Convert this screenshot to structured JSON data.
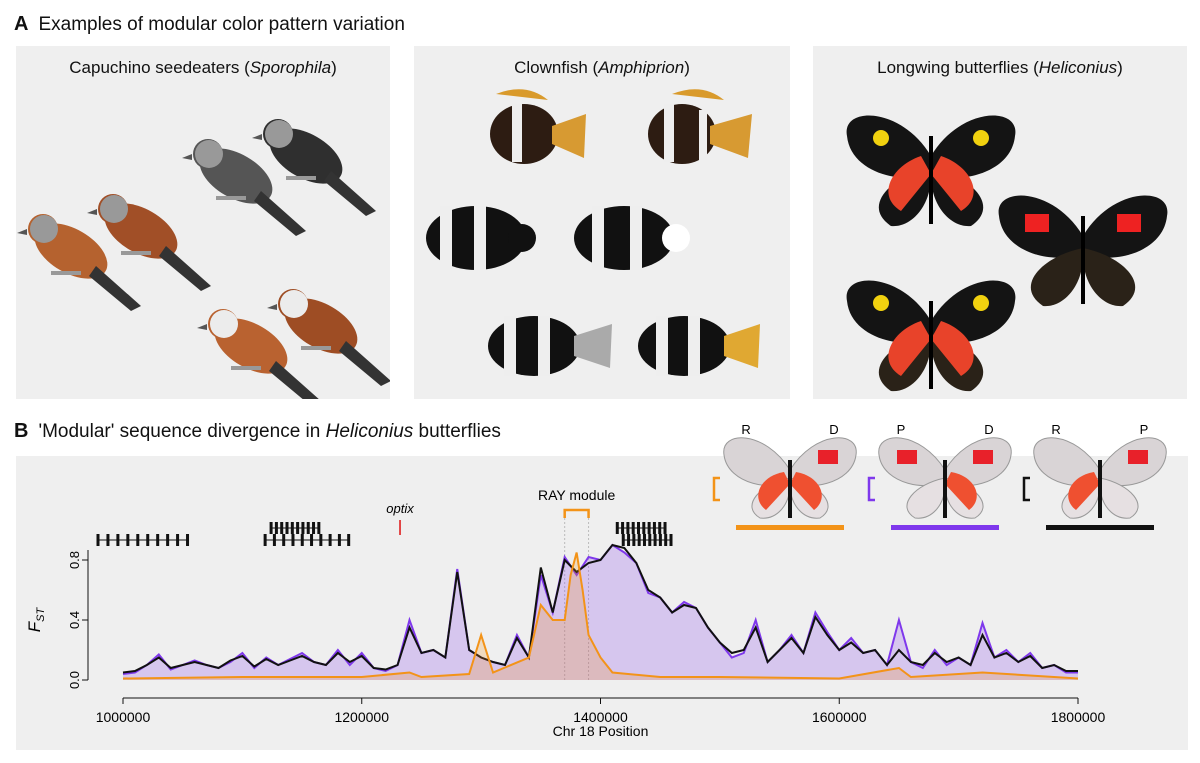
{
  "panelA": {
    "letter": "A",
    "title": "Examples of modular color pattern variation",
    "boxes": [
      {
        "title": "Capuchino seedeaters (",
        "italic": "Sporophila",
        "close": ")"
      },
      {
        "title": "Clownfish (",
        "italic": "Amphiprion",
        "close": ")"
      },
      {
        "title": "Longwing butterflies (",
        "italic": "Heliconius",
        "close": ")"
      }
    ]
  },
  "panelB": {
    "letter": "B",
    "title_pre": "'Modular' sequence divergence in ",
    "title_italic": "Heliconius",
    "title_post": " butterflies",
    "gene_label": "optix",
    "module_label": "RAY module",
    "insets": [
      {
        "left": "R",
        "right": "D",
        "bar_color": "#f39318"
      },
      {
        "left": "P",
        "right": "D",
        "bar_color": "#7f38ec"
      },
      {
        "left": "R",
        "right": "P",
        "bar_color": "#111111"
      }
    ]
  },
  "chart_data": {
    "type": "line",
    "xlabel": "Chr 18 Position",
    "ylabel": "FST",
    "xlim": [
      1000000,
      1800000
    ],
    "ylim": [
      0,
      1
    ],
    "xticks": [
      1000000,
      1200000,
      1400000,
      1600000,
      1800000
    ],
    "xtick_labels": [
      "1000000",
      "1200000",
      "1400000",
      "1600000",
      "1800000"
    ],
    "yticks": [
      0.0,
      0.4,
      0.8
    ],
    "ytick_labels": [
      "0.0",
      "0.4",
      "0.8"
    ],
    "series": [
      {
        "color": "#7f38ec",
        "fill": true,
        "points": [
          [
            1000000,
            0.04
          ],
          [
            1010000,
            0.05
          ],
          [
            1020000,
            0.1
          ],
          [
            1030000,
            0.17
          ],
          [
            1040000,
            0.07
          ],
          [
            1050000,
            0.1
          ],
          [
            1060000,
            0.13
          ],
          [
            1070000,
            0.1
          ],
          [
            1080000,
            0.08
          ],
          [
            1090000,
            0.12
          ],
          [
            1100000,
            0.18
          ],
          [
            1110000,
            0.08
          ],
          [
            1120000,
            0.15
          ],
          [
            1130000,
            0.1
          ],
          [
            1140000,
            0.14
          ],
          [
            1150000,
            0.18
          ],
          [
            1160000,
            0.12
          ],
          [
            1170000,
            0.1
          ],
          [
            1180000,
            0.2
          ],
          [
            1190000,
            0.1
          ],
          [
            1200000,
            0.18
          ],
          [
            1210000,
            0.08
          ],
          [
            1220000,
            0.06
          ],
          [
            1230000,
            0.1
          ],
          [
            1240000,
            0.4
          ],
          [
            1250000,
            0.18
          ],
          [
            1260000,
            0.2
          ],
          [
            1270000,
            0.15
          ],
          [
            1280000,
            0.74
          ],
          [
            1290000,
            0.2
          ],
          [
            1300000,
            0.15
          ],
          [
            1310000,
            0.12
          ],
          [
            1320000,
            0.1
          ],
          [
            1330000,
            0.3
          ],
          [
            1340000,
            0.15
          ],
          [
            1350000,
            0.7
          ],
          [
            1360000,
            0.45
          ],
          [
            1370000,
            0.82
          ],
          [
            1380000,
            0.7
          ],
          [
            1390000,
            0.82
          ],
          [
            1400000,
            0.8
          ],
          [
            1410000,
            0.9
          ],
          [
            1420000,
            0.85
          ],
          [
            1430000,
            0.78
          ],
          [
            1440000,
            0.58
          ],
          [
            1450000,
            0.55
          ],
          [
            1460000,
            0.45
          ],
          [
            1470000,
            0.52
          ],
          [
            1480000,
            0.48
          ],
          [
            1490000,
            0.35
          ],
          [
            1500000,
            0.25
          ],
          [
            1510000,
            0.15
          ],
          [
            1520000,
            0.18
          ],
          [
            1530000,
            0.4
          ],
          [
            1540000,
            0.12
          ],
          [
            1550000,
            0.2
          ],
          [
            1560000,
            0.3
          ],
          [
            1570000,
            0.18
          ],
          [
            1580000,
            0.45
          ],
          [
            1590000,
            0.32
          ],
          [
            1600000,
            0.2
          ],
          [
            1610000,
            0.28
          ],
          [
            1620000,
            0.18
          ],
          [
            1630000,
            0.2
          ],
          [
            1640000,
            0.1
          ],
          [
            1650000,
            0.4
          ],
          [
            1660000,
            0.12
          ],
          [
            1670000,
            0.08
          ],
          [
            1680000,
            0.2
          ],
          [
            1690000,
            0.1
          ],
          [
            1700000,
            0.15
          ],
          [
            1710000,
            0.1
          ],
          [
            1720000,
            0.38
          ],
          [
            1730000,
            0.15
          ],
          [
            1740000,
            0.2
          ],
          [
            1750000,
            0.12
          ],
          [
            1760000,
            0.18
          ],
          [
            1770000,
            0.08
          ],
          [
            1780000,
            0.1
          ],
          [
            1790000,
            0.05
          ],
          [
            1800000,
            0.05
          ]
        ]
      },
      {
        "color": "#111111",
        "fill": false,
        "points": [
          [
            1000000,
            0.05
          ],
          [
            1010000,
            0.06
          ],
          [
            1020000,
            0.1
          ],
          [
            1030000,
            0.15
          ],
          [
            1040000,
            0.08
          ],
          [
            1050000,
            0.1
          ],
          [
            1060000,
            0.12
          ],
          [
            1070000,
            0.1
          ],
          [
            1080000,
            0.08
          ],
          [
            1090000,
            0.13
          ],
          [
            1100000,
            0.16
          ],
          [
            1110000,
            0.09
          ],
          [
            1120000,
            0.14
          ],
          [
            1130000,
            0.1
          ],
          [
            1140000,
            0.13
          ],
          [
            1150000,
            0.16
          ],
          [
            1160000,
            0.12
          ],
          [
            1170000,
            0.1
          ],
          [
            1180000,
            0.18
          ],
          [
            1190000,
            0.12
          ],
          [
            1200000,
            0.16
          ],
          [
            1210000,
            0.08
          ],
          [
            1220000,
            0.07
          ],
          [
            1230000,
            0.1
          ],
          [
            1240000,
            0.35
          ],
          [
            1250000,
            0.18
          ],
          [
            1260000,
            0.2
          ],
          [
            1270000,
            0.15
          ],
          [
            1280000,
            0.72
          ],
          [
            1290000,
            0.2
          ],
          [
            1300000,
            0.15
          ],
          [
            1310000,
            0.12
          ],
          [
            1320000,
            0.1
          ],
          [
            1330000,
            0.28
          ],
          [
            1340000,
            0.15
          ],
          [
            1350000,
            0.75
          ],
          [
            1360000,
            0.45
          ],
          [
            1370000,
            0.8
          ],
          [
            1380000,
            0.72
          ],
          [
            1390000,
            0.78
          ],
          [
            1400000,
            0.8
          ],
          [
            1410000,
            0.9
          ],
          [
            1420000,
            0.88
          ],
          [
            1430000,
            0.78
          ],
          [
            1440000,
            0.6
          ],
          [
            1450000,
            0.55
          ],
          [
            1460000,
            0.45
          ],
          [
            1470000,
            0.5
          ],
          [
            1480000,
            0.48
          ],
          [
            1490000,
            0.35
          ],
          [
            1500000,
            0.25
          ],
          [
            1510000,
            0.18
          ],
          [
            1520000,
            0.2
          ],
          [
            1530000,
            0.35
          ],
          [
            1540000,
            0.12
          ],
          [
            1550000,
            0.2
          ],
          [
            1560000,
            0.28
          ],
          [
            1570000,
            0.18
          ],
          [
            1580000,
            0.42
          ],
          [
            1590000,
            0.3
          ],
          [
            1600000,
            0.2
          ],
          [
            1610000,
            0.25
          ],
          [
            1620000,
            0.18
          ],
          [
            1630000,
            0.2
          ],
          [
            1640000,
            0.1
          ],
          [
            1650000,
            0.2
          ],
          [
            1660000,
            0.12
          ],
          [
            1670000,
            0.1
          ],
          [
            1680000,
            0.18
          ],
          [
            1690000,
            0.12
          ],
          [
            1700000,
            0.15
          ],
          [
            1710000,
            0.1
          ],
          [
            1720000,
            0.3
          ],
          [
            1730000,
            0.15
          ],
          [
            1740000,
            0.18
          ],
          [
            1750000,
            0.12
          ],
          [
            1760000,
            0.16
          ],
          [
            1770000,
            0.08
          ],
          [
            1780000,
            0.1
          ],
          [
            1790000,
            0.06
          ],
          [
            1800000,
            0.06
          ]
        ]
      },
      {
        "color": "#f39318",
        "fill": true,
        "points": [
          [
            1000000,
            0.01
          ],
          [
            1100000,
            0.02
          ],
          [
            1200000,
            0.02
          ],
          [
            1240000,
            0.05
          ],
          [
            1250000,
            0.02
          ],
          [
            1290000,
            0.04
          ],
          [
            1300000,
            0.3
          ],
          [
            1310000,
            0.05
          ],
          [
            1340000,
            0.15
          ],
          [
            1350000,
            0.5
          ],
          [
            1360000,
            0.4
          ],
          [
            1370000,
            0.4
          ],
          [
            1375000,
            0.7
          ],
          [
            1380000,
            0.85
          ],
          [
            1385000,
            0.6
          ],
          [
            1390000,
            0.3
          ],
          [
            1400000,
            0.15
          ],
          [
            1410000,
            0.05
          ],
          [
            1450000,
            0.02
          ],
          [
            1500000,
            0.02
          ],
          [
            1600000,
            0.01
          ],
          [
            1650000,
            0.08
          ],
          [
            1660000,
            0.02
          ],
          [
            1720000,
            0.05
          ],
          [
            1800000,
            0.01
          ]
        ]
      }
    ],
    "gene_tracks": [
      {
        "start": 1000000,
        "end": 1075000,
        "row": 0
      },
      {
        "start": 1145000,
        "end": 1185000,
        "row": 1
      },
      {
        "start": 1140000,
        "end": 1210000,
        "row": 0
      },
      {
        "start": 1435000,
        "end": 1475000,
        "row": 1
      },
      {
        "start": 1440000,
        "end": 1480000,
        "row": 0
      }
    ],
    "optix_position": 1253000,
    "ray_module": [
      1370000,
      1390000
    ]
  }
}
